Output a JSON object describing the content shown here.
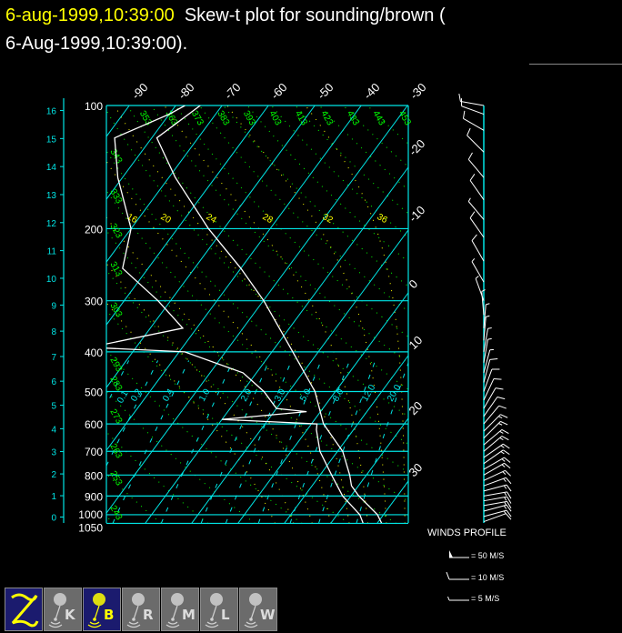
{
  "title": {
    "timestamp": "6-aug-1999,10:39:00",
    "text_line1": "  Skew-t plot for sounding/brown (",
    "text_line2": "6-Aug-1999,10:39:00)."
  },
  "colors": {
    "background": "#000000",
    "grid": "#00e5e5",
    "dry_adiabat": "#00ff00",
    "moist_adiabat": "#ffff00",
    "sounding": "#ffffff",
    "title_timestamp": "#ffff00"
  },
  "chart_data": {
    "type": "skew-t",
    "pressure_axis": {
      "unit": "hPa",
      "scale": "log",
      "ticks": [
        "100",
        "200",
        "300",
        "400",
        "500",
        "600",
        "700",
        "800",
        "900",
        "1000",
        "1050"
      ],
      "range": [
        1050,
        100
      ]
    },
    "height_axis": {
      "unit": "km",
      "ticks": [
        "0",
        "1",
        "2",
        "3",
        "4",
        "5",
        "6",
        "7",
        "8",
        "9",
        "10",
        "11",
        "12",
        "13",
        "14",
        "15",
        "16"
      ]
    },
    "isotherm_labels_top": [
      "-90",
      "-80",
      "-70",
      "-60",
      "-50",
      "-40",
      "-30"
    ],
    "isotherm_labels_right": [
      "-20",
      "-10",
      "0",
      "10",
      "20",
      "30"
    ],
    "dry_adiabat_labels": [
      "243",
      "253",
      "263",
      "273",
      "283",
      "293",
      "303",
      "313",
      "323",
      "333",
      "343",
      "353",
      "363",
      "373",
      "383",
      "393",
      "403",
      "413",
      "423",
      "433",
      "443",
      "453"
    ],
    "moist_adiabat_labels": [
      "16",
      "20",
      "24",
      "28",
      "32",
      "36"
    ],
    "mixing_ratio_labels": [
      "0.1",
      "0.2",
      "0.4",
      "1.0",
      "2.0",
      "3.0",
      "5.0",
      "8.0",
      "12.0",
      "20.0"
    ],
    "temperature_profile": {
      "pressure": [
        1050,
        1000,
        900,
        850,
        800,
        700,
        600,
        500,
        400,
        300,
        250,
        200,
        150,
        120,
        100
      ],
      "temp_c": [
        31,
        28.7,
        21.7,
        18.5,
        16.4,
        11.1,
        2.6,
        -4.4,
        -15.5,
        -29.9,
        -40,
        -53.3,
        -68.6,
        -78.9,
        -74.7
      ]
    },
    "dewpoint_profile": {
      "pressure": [
        1050,
        1000,
        900,
        800,
        700,
        620,
        600,
        585,
        560,
        550,
        500,
        450,
        400,
        390,
        350,
        300,
        250,
        200,
        150,
        120,
        105,
        100
      ],
      "dewpoint_c": [
        27,
        24.9,
        18.2,
        12.5,
        6.2,
        2,
        1.2,
        -20,
        -3,
        -10,
        -15.4,
        -22.9,
        -38.8,
        -60,
        -43,
        -52.7,
        -65.5,
        -70,
        -81,
        -88,
        -80,
        -78
      ]
    },
    "winds": [
      [
        1040,
        70,
        10
      ],
      [
        1010,
        75,
        14
      ],
      [
        980,
        75,
        14
      ],
      [
        950,
        80,
        13
      ],
      [
        925,
        80,
        14
      ],
      [
        900,
        80,
        13
      ],
      [
        875,
        75,
        13
      ],
      [
        850,
        70,
        14
      ],
      [
        825,
        65,
        14
      ],
      [
        800,
        60,
        14
      ],
      [
        775,
        60,
        13
      ],
      [
        750,
        55,
        14
      ],
      [
        725,
        55,
        13
      ],
      [
        700,
        50,
        14
      ],
      [
        675,
        50,
        13
      ],
      [
        650,
        45,
        14
      ],
      [
        625,
        45,
        13
      ],
      [
        600,
        40,
        12
      ],
      [
        575,
        35,
        10
      ],
      [
        550,
        30,
        10
      ],
      [
        525,
        25,
        8
      ],
      [
        500,
        20,
        8
      ],
      [
        475,
        15,
        8
      ],
      [
        450,
        15,
        7
      ],
      [
        425,
        10,
        6
      ],
      [
        400,
        10,
        5
      ],
      [
        375,
        5,
        5
      ],
      [
        350,
        5,
        5
      ],
      [
        325,
        355,
        4
      ],
      [
        300,
        340,
        5
      ],
      [
        270,
        330,
        7
      ],
      [
        240,
        330,
        8
      ],
      [
        210,
        325,
        8
      ],
      [
        190,
        320,
        7
      ],
      [
        170,
        325,
        8
      ],
      [
        150,
        320,
        9
      ],
      [
        130,
        315,
        10
      ],
      [
        115,
        300,
        12
      ],
      [
        105,
        290,
        12
      ],
      [
        100,
        280,
        10
      ]
    ]
  },
  "wind_legend": {
    "title": "WINDS PROFILE",
    "items": [
      {
        "label": "= 50 M/S",
        "speed": 50
      },
      {
        "label": "= 10 M/S",
        "speed": 10
      },
      {
        "label": "= 5 M/S",
        "speed": 5
      }
    ]
  },
  "toolbar": {
    "buttons": [
      {
        "id": "Z",
        "label": "Z",
        "icon": "zoom-z-icon",
        "active": true
      },
      {
        "id": "K",
        "label": "K",
        "icon": "balloon-icon",
        "active": false
      },
      {
        "id": "B",
        "label": "B",
        "icon": "balloon-icon",
        "active": true
      },
      {
        "id": "R",
        "label": "R",
        "icon": "balloon-icon",
        "active": false
      },
      {
        "id": "M",
        "label": "M",
        "icon": "balloon-icon",
        "active": false
      },
      {
        "id": "L",
        "label": "L",
        "icon": "balloon-icon",
        "active": false
      },
      {
        "id": "W",
        "label": "W",
        "icon": "balloon-icon",
        "active": false
      }
    ]
  }
}
